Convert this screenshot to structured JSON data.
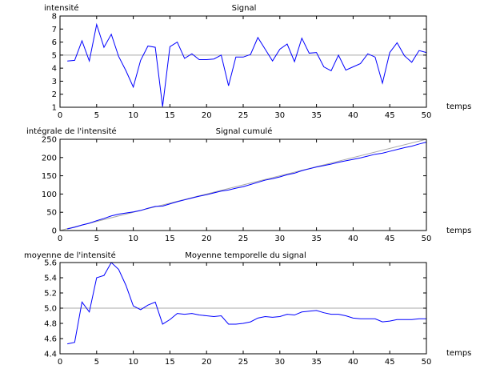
{
  "colors": {
    "background": "#ffffff",
    "axes": "#000000",
    "series": "#0000ff",
    "reference_line": "#a8a8a8"
  },
  "chart_data": [
    {
      "type": "line",
      "title": "Signal",
      "xlabel": "temps",
      "ylabel": "intensité",
      "xlim": [
        0,
        50
      ],
      "ylim": [
        1,
        8
      ],
      "xticks": [
        "0",
        "5",
        "10",
        "15",
        "20",
        "25",
        "30",
        "35",
        "40",
        "45",
        "50"
      ],
      "yticks": [
        "1",
        "2",
        "3",
        "4",
        "5",
        "6",
        "7",
        "8"
      ],
      "grid": false,
      "reference_line": 5,
      "series": [
        {
          "x": [
            1,
            2,
            3,
            4,
            5,
            6,
            7,
            8,
            9,
            10,
            11,
            12,
            13,
            14,
            15,
            16,
            17,
            18,
            19,
            20,
            21,
            22,
            23,
            24,
            25,
            26,
            27,
            28,
            29,
            30,
            31,
            32,
            33,
            34,
            35,
            36,
            37,
            38,
            39,
            40,
            41,
            42,
            43,
            44,
            45,
            46,
            47,
            48,
            49,
            50
          ],
          "values": [
            4.55,
            4.6,
            6.1,
            4.55,
            7.35,
            5.6,
            6.6,
            4.9,
            3.8,
            2.55,
            4.6,
            5.7,
            5.6,
            1.05,
            5.65,
            6.0,
            4.75,
            5.1,
            4.65,
            4.65,
            4.7,
            5.0,
            2.65,
            4.85,
            4.85,
            5.05,
            6.35,
            5.45,
            4.55,
            5.45,
            5.85,
            4.5,
            6.3,
            5.15,
            5.2,
            4.1,
            3.8,
            5.0,
            3.85,
            4.1,
            4.35,
            5.1,
            4.85,
            2.85,
            5.2,
            5.95,
            4.95,
            4.45,
            5.35,
            5.2
          ]
        }
      ]
    },
    {
      "type": "line",
      "title": "Signal cumulé",
      "xlabel": "temps",
      "ylabel": "intégrale de l'intensité",
      "xlim": [
        0,
        50
      ],
      "ylim": [
        0,
        250
      ],
      "xticks": [
        "0",
        "5",
        "10",
        "15",
        "20",
        "25",
        "30",
        "35",
        "40",
        "45",
        "50"
      ],
      "yticks": [
        "0",
        "50",
        "100",
        "150",
        "200",
        "250"
      ],
      "grid": false,
      "reference_line_slope": 5,
      "series": [
        {
          "x": [
            1,
            2,
            3,
            4,
            5,
            6,
            7,
            8,
            9,
            10,
            11,
            12,
            13,
            14,
            15,
            16,
            17,
            18,
            19,
            20,
            21,
            22,
            23,
            24,
            25,
            26,
            27,
            28,
            29,
            30,
            31,
            32,
            33,
            34,
            35,
            36,
            37,
            38,
            39,
            40,
            41,
            42,
            43,
            44,
            45,
            46,
            47,
            48,
            49,
            50
          ],
          "values": [
            4.5,
            9,
            15,
            20,
            27,
            33,
            40,
            45,
            48,
            51,
            55,
            61,
            66,
            67,
            73,
            79,
            84,
            89,
            94,
            98,
            103,
            108,
            111,
            116,
            120,
            126,
            132,
            138,
            142,
            147,
            153,
            157,
            164,
            169,
            174,
            178,
            182,
            187,
            191,
            195,
            199,
            204,
            209,
            212,
            217,
            222,
            227,
            231,
            237,
            242
          ]
        }
      ]
    },
    {
      "type": "line",
      "title": "Moyenne temporelle du signal",
      "xlabel": "temps",
      "ylabel": "moyenne de l'intensité",
      "xlim": [
        0,
        50
      ],
      "ylim": [
        4.4,
        5.6
      ],
      "xticks": [
        "0",
        "5",
        "10",
        "15",
        "20",
        "25",
        "30",
        "35",
        "40",
        "45",
        "50"
      ],
      "yticks": [
        "4.4",
        "4.6",
        "4.8",
        "5.0",
        "5.2",
        "5.4",
        "5.6"
      ],
      "grid": false,
      "reference_line": 5.0,
      "series": [
        {
          "x": [
            1,
            2,
            3,
            4,
            5,
            6,
            7,
            8,
            9,
            10,
            11,
            12,
            13,
            14,
            15,
            16,
            17,
            18,
            19,
            20,
            21,
            22,
            23,
            24,
            25,
            26,
            27,
            28,
            29,
            30,
            31,
            32,
            33,
            34,
            35,
            36,
            37,
            38,
            39,
            40,
            41,
            42,
            43,
            44,
            45,
            46,
            47,
            48,
            49,
            50
          ],
          "values": [
            4.53,
            4.55,
            5.08,
            4.95,
            5.4,
            5.43,
            5.6,
            5.51,
            5.3,
            5.03,
            4.98,
            5.04,
            5.08,
            4.79,
            4.85,
            4.93,
            4.92,
            4.93,
            4.91,
            4.9,
            4.89,
            4.9,
            4.79,
            4.79,
            4.8,
            4.82,
            4.87,
            4.89,
            4.88,
            4.89,
            4.92,
            4.91,
            4.95,
            4.96,
            4.97,
            4.94,
            4.92,
            4.92,
            4.9,
            4.87,
            4.86,
            4.86,
            4.86,
            4.82,
            4.83,
            4.85,
            4.85,
            4.85,
            4.86,
            4.86
          ]
        }
      ]
    }
  ]
}
